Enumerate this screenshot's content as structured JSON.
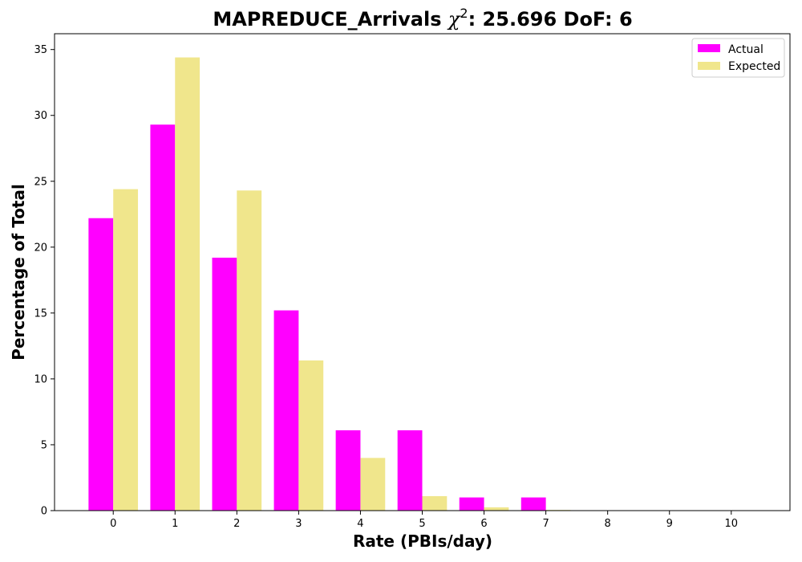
{
  "chart_data": {
    "type": "bar",
    "title": "MAPREDUCE_Arrivals χ²: 25.696 DoF: 6",
    "title_parts": {
      "prefix": "MAPREDUCE_Arrivals ",
      "chi": "χ",
      "sup": "2",
      "suffix": ": 25.696 DoF: 6"
    },
    "xlabel": "Rate (PBIs/day)",
    "ylabel": "Percentage of Total",
    "categories": [
      "0",
      "1",
      "2",
      "3",
      "4",
      "5",
      "6",
      "7",
      "8",
      "9",
      "10"
    ],
    "series": [
      {
        "name": "Actual",
        "color": "#ff00ff",
        "values": [
          22.2,
          29.3,
          19.2,
          15.2,
          6.1,
          6.1,
          1.0,
          1.0,
          0,
          0,
          0
        ]
      },
      {
        "name": "Expected",
        "color": "#f0e68c",
        "values": [
          24.4,
          34.4,
          24.3,
          11.4,
          4.0,
          1.1,
          0.25,
          0.05,
          0,
          0,
          0
        ]
      }
    ],
    "yticks": [
      0,
      5,
      10,
      15,
      20,
      25,
      30,
      35
    ],
    "ylim": [
      0,
      36.2
    ],
    "xlim": [
      -0.95,
      10.95
    ],
    "legend_position": "upper-right",
    "grid": false
  }
}
